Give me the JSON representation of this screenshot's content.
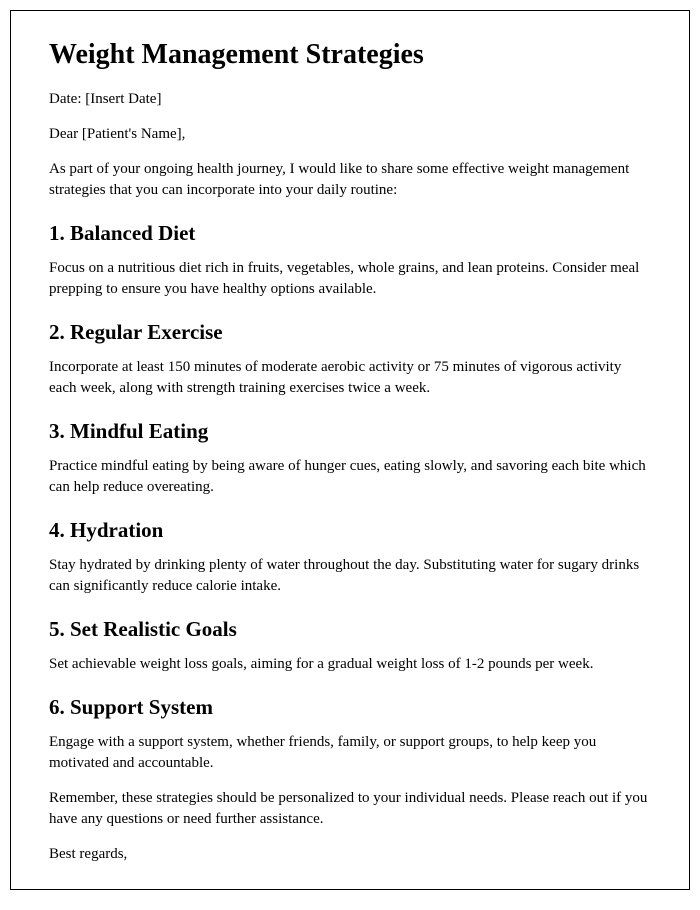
{
  "title": "Weight Management Strategies",
  "date_line": "Date: [Insert Date]",
  "greeting": "Dear [Patient's Name],",
  "intro": "As part of your ongoing health journey, I would like to share some effective weight management strategies that you can incorporate into your daily routine:",
  "sections": {
    "s1": {
      "heading": "1. Balanced Diet",
      "body": "Focus on a nutritious diet rich in fruits, vegetables, whole grains, and lean proteins. Consider meal prepping to ensure you have healthy options available."
    },
    "s2": {
      "heading": "2. Regular Exercise",
      "body": "Incorporate at least 150 minutes of moderate aerobic activity or 75 minutes of vigorous activity each week, along with strength training exercises twice a week."
    },
    "s3": {
      "heading": "3. Mindful Eating",
      "body": "Practice mindful eating by being aware of hunger cues, eating slowly, and savoring each bite which can help reduce overeating."
    },
    "s4": {
      "heading": "4. Hydration",
      "body": "Stay hydrated by drinking plenty of water throughout the day. Substituting water for sugary drinks can significantly reduce calorie intake."
    },
    "s5": {
      "heading": "5. Set Realistic Goals",
      "body": "Set achievable weight loss goals, aiming for a gradual weight loss of 1-2 pounds per week."
    },
    "s6": {
      "heading": "6. Support System",
      "body": "Engage with a support system, whether friends, family, or support groups, to help keep you motivated and accountable."
    }
  },
  "closing1": "Remember, these strategies should be personalized to your individual needs. Please reach out if you have any questions or need further assistance.",
  "closing2": "Best regards,"
}
